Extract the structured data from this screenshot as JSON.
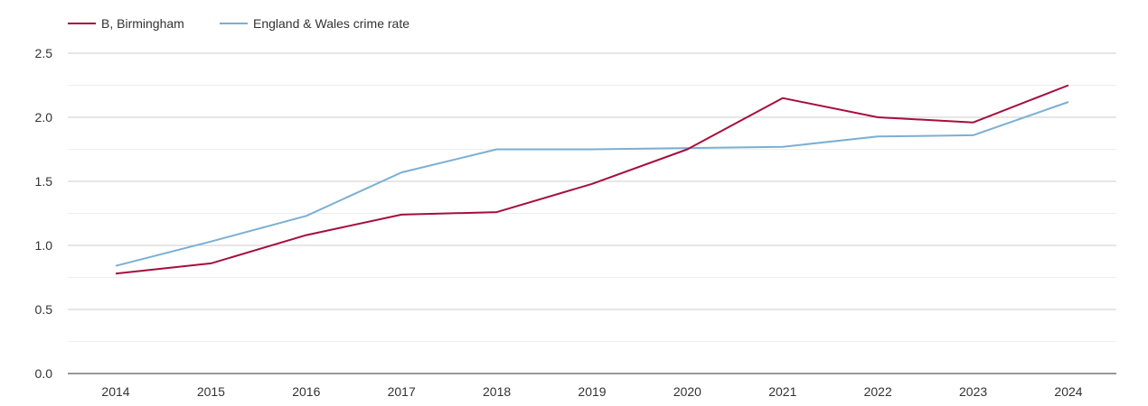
{
  "chart_data": {
    "type": "line",
    "title": "",
    "xlabel": "",
    "ylabel": "",
    "x": [
      "2014",
      "2015",
      "2016",
      "2017",
      "2018",
      "2019",
      "2020",
      "2021",
      "2022",
      "2023",
      "2024"
    ],
    "ylim": [
      0,
      2.5
    ],
    "yticks": [
      "0.0",
      "0.5",
      "1.0",
      "1.5",
      "2.0",
      "2.5"
    ],
    "grid": true,
    "legend_position": "top-left",
    "series": [
      {
        "name": "B, Birmingham",
        "color": "#a50f3c",
        "values": [
          0.78,
          0.86,
          1.08,
          1.24,
          1.26,
          1.48,
          1.75,
          2.15,
          2.0,
          1.96,
          2.25
        ]
      },
      {
        "name": "England & Wales crime rate",
        "color": "#7bafd4",
        "values": [
          0.84,
          1.03,
          1.23,
          1.57,
          1.75,
          1.75,
          1.76,
          1.77,
          1.85,
          1.86,
          2.12
        ]
      }
    ]
  }
}
